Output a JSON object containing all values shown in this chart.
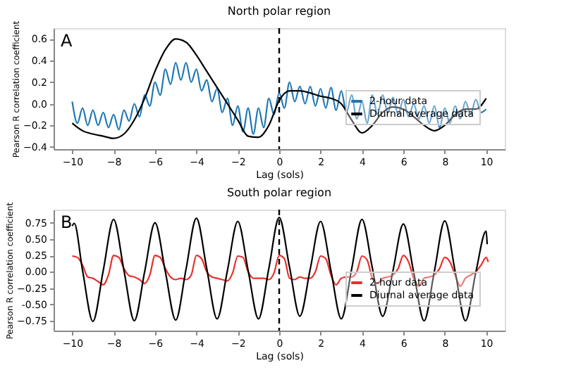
{
  "chart_data": [
    {
      "type": "line",
      "title": "North polar region",
      "xlabel": "Lag (sols)",
      "ylabel": "Pearson R correlation coefficient",
      "annotations": [
        "A"
      ],
      "legend": "bottom right",
      "xlim": [
        -10.9,
        10.9
      ],
      "xticks": [
        -10,
        -8,
        -6,
        -4,
        -2,
        0,
        2,
        4,
        6,
        8,
        10
      ],
      "ylim": [
        -0.42,
        0.7
      ],
      "yticks": [
        -0.4,
        -0.2,
        {
          "value": 0,
          "label": "0.0"
        },
        0.2,
        0.4,
        0.6
      ],
      "ref_lines": [
        {
          "axis": "x",
          "value": 0,
          "label": null,
          "color": "#000000",
          "line_style": "dashed"
        }
      ],
      "series": [
        {
          "name": "2-hour data",
          "color": "#1f77b4",
          "x": [
            -10,
            -9.75,
            -9.5,
            -9.25,
            -9,
            -8.75,
            -8.5,
            -8.25,
            -8,
            -7.75,
            -7.5,
            -7.25,
            -7,
            -6.75,
            -6.5,
            -6.25,
            -6,
            -5.75,
            -5.5,
            -5.25,
            -5,
            -4.75,
            -4.5,
            -4.25,
            -4,
            -3.75,
            -3.5,
            -3.25,
            -3,
            -2.75,
            -2.5,
            -2.25,
            -2,
            -1.75,
            -1.5,
            -1.25,
            -1,
            -0.75,
            -0.5,
            -0.25,
            0,
            0.25,
            0.5,
            0.75,
            1,
            1.25,
            1.5,
            1.75,
            2,
            2.25,
            2.5,
            2.75,
            3,
            3.25,
            3.5,
            3.75,
            4,
            4.25,
            4.5,
            4.75,
            5,
            5.25,
            5.5,
            5.75,
            6,
            6.25,
            6.5,
            6.75,
            7,
            7.25,
            7.5,
            7.75,
            8,
            8.25,
            8.5,
            8.75,
            9,
            9.25,
            9.5,
            9.75,
            10
          ],
          "values": [
            0.02,
            -0.18,
            -0.04,
            -0.2,
            -0.06,
            -0.2,
            -0.08,
            -0.22,
            -0.1,
            -0.24,
            -0.06,
            -0.16,
            0.0,
            -0.12,
            0.08,
            -0.02,
            0.2,
            0.08,
            0.32,
            0.18,
            0.38,
            0.22,
            0.38,
            0.2,
            0.32,
            0.12,
            0.22,
            0.02,
            0.14,
            -0.08,
            0.05,
            -0.2,
            -0.02,
            -0.26,
            -0.04,
            -0.28,
            -0.04,
            -0.22,
            0.05,
            -0.1,
            0.1,
            -0.04,
            0.2,
            0.02,
            0.16,
            0.0,
            0.16,
            -0.02,
            0.14,
            -0.04,
            0.15,
            -0.06,
            0.12,
            -0.08,
            0.08,
            -0.14,
            0.02,
            -0.18,
            0.08,
            -0.1,
            0.08,
            -0.08,
            0.06,
            -0.1,
            0.04,
            -0.12,
            0.0,
            -0.14,
            -0.02,
            -0.18,
            -0.02,
            -0.22,
            -0.04,
            -0.18,
            -0.02,
            -0.14,
            0.02,
            -0.1,
            0.04,
            -0.08,
            -0.05
          ]
        },
        {
          "name": "Diurnal average data",
          "color": "#000000",
          "x": [
            -10,
            -9.5,
            -9,
            -8.5,
            -8,
            -7.5,
            -7,
            -6.5,
            -6,
            -5.5,
            -5,
            -4.5,
            -4,
            -3.5,
            -3,
            -2.5,
            -2,
            -1.5,
            -1,
            -0.5,
            0,
            0.5,
            1,
            1.5,
            2,
            2.5,
            3,
            3.5,
            4,
            4.5,
            5,
            5.5,
            6,
            6.5,
            7,
            7.5,
            8,
            8.5,
            9,
            9.5,
            10
          ],
          "values": [
            -0.18,
            -0.25,
            -0.28,
            -0.3,
            -0.32,
            -0.28,
            -0.15,
            0.05,
            0.3,
            0.5,
            0.6,
            0.57,
            0.45,
            0.3,
            0.15,
            0.0,
            -0.15,
            -0.3,
            -0.31,
            -0.2,
            0.03,
            0.12,
            0.12,
            0.1,
            0.07,
            0.05,
            0.0,
            -0.15,
            -0.27,
            -0.2,
            -0.08,
            -0.03,
            -0.05,
            -0.12,
            -0.2,
            -0.25,
            -0.2,
            -0.1,
            -0.05,
            -0.05,
            0.05
          ]
        }
      ]
    },
    {
      "type": "line",
      "title": "South polar region",
      "xlabel": "Lag (sols)",
      "ylabel": "Pearson R correlation coefficient",
      "annotations": [
        "B"
      ],
      "legend": "bottom right",
      "xlim": [
        -10.9,
        10.9
      ],
      "xticks": [
        -10,
        -8,
        -6,
        -4,
        -2,
        0,
        2,
        4,
        6,
        8,
        10
      ],
      "ylim": [
        -0.9,
        0.95
      ],
      "yticks": [
        -0.75,
        {
          "value": -0.5,
          "label": "-0.50"
        },
        -0.25,
        {
          "value": 0,
          "label": "0.00"
        },
        0.25,
        {
          "value": 0.5,
          "label": "0.50"
        },
        0.75
      ],
      "ref_lines": [
        {
          "axis": "x",
          "value": 0,
          "label": null,
          "color": "#000000",
          "line_style": "dashed"
        }
      ],
      "series": [
        {
          "name": "2-hour data",
          "color": "#e8302a",
          "x": [
            -10,
            -9.75,
            -9.5,
            -9.25,
            -9,
            -8.75,
            -8.5,
            -8.25,
            -8,
            -7.75,
            -7.5,
            -7.25,
            -7,
            -6.75,
            -6.5,
            -6.25,
            -6,
            -5.75,
            -5.5,
            -5.25,
            -5,
            -4.75,
            -4.5,
            -4.25,
            -4,
            -3.75,
            -3.5,
            -3.25,
            -3,
            -2.75,
            -2.5,
            -2.25,
            -2,
            -1.75,
            -1.5,
            -1.25,
            -1,
            -0.75,
            -0.5,
            -0.25,
            0,
            0.25,
            0.5,
            0.75,
            1,
            1.25,
            1.5,
            1.75,
            2,
            2.25,
            2.5,
            2.75,
            3,
            3.25,
            3.5,
            3.75,
            4,
            4.25,
            4.5,
            4.75,
            5,
            5.25,
            5.5,
            5.75,
            6,
            6.25,
            6.5,
            6.75,
            7,
            7.25,
            7.5,
            7.75,
            8,
            8.25,
            8.5,
            8.75,
            9,
            9.25,
            9.5,
            9.75,
            10,
            10.1
          ],
          "values": [
            0.24,
            0.22,
            0.1,
            -0.08,
            -0.1,
            -0.15,
            -0.2,
            -0.05,
            0.25,
            0.22,
            0.05,
            -0.06,
            -0.08,
            -0.12,
            -0.18,
            -0.05,
            0.25,
            0.22,
            0.05,
            -0.08,
            -0.12,
            -0.1,
            -0.12,
            -0.05,
            0.25,
            0.2,
            0.0,
            -0.08,
            -0.1,
            -0.12,
            -0.14,
            -0.02,
            0.24,
            0.22,
            0.0,
            -0.1,
            -0.1,
            -0.1,
            -0.12,
            -0.02,
            0.25,
            0.2,
            -0.1,
            -0.12,
            -0.08,
            -0.1,
            -0.1,
            0.0,
            0.24,
            0.2,
            -0.05,
            -0.2,
            -0.1,
            -0.08,
            -0.08,
            0.0,
            0.24,
            0.18,
            -0.1,
            -0.18,
            -0.1,
            -0.08,
            -0.05,
            0.05,
            0.25,
            0.15,
            -0.1,
            -0.22,
            -0.1,
            -0.08,
            -0.05,
            0.05,
            0.22,
            0.15,
            -0.05,
            -0.22,
            -0.1,
            -0.05,
            0.0,
            0.1,
            0.22,
            0.15
          ]
        },
        {
          "name": "Diurnal average data",
          "color": "#000000",
          "x": [
            -10,
            -9.9,
            -9.5,
            -9,
            -8.5,
            -8,
            -7.5,
            -7,
            -6.5,
            -6,
            -5.5,
            -5,
            -4.5,
            -4,
            -3.5,
            -3,
            -2.5,
            -2,
            -1.5,
            -1,
            -0.5,
            0,
            0.5,
            1,
            1.5,
            2,
            2.5,
            3,
            3.5,
            4,
            4.5,
            5,
            5.5,
            6,
            6.5,
            7,
            7.5,
            8,
            8.5,
            9,
            9.5,
            10,
            10.05
          ],
          "values": [
            0.7,
            0.74,
            0.02,
            -0.76,
            0.02,
            0.8,
            0.02,
            -0.75,
            0.0,
            0.75,
            0.0,
            -0.74,
            0.04,
            0.82,
            0.05,
            -0.72,
            0.02,
            0.77,
            0.02,
            -0.72,
            0.05,
            0.83,
            0.07,
            -0.68,
            0.04,
            0.77,
            0.02,
            -0.72,
            0.04,
            0.8,
            0.06,
            -0.68,
            0.02,
            0.73,
            -0.01,
            -0.75,
            0.01,
            0.78,
            0.01,
            -0.75,
            -0.01,
            0.62,
            0.42
          ]
        }
      ]
    }
  ]
}
